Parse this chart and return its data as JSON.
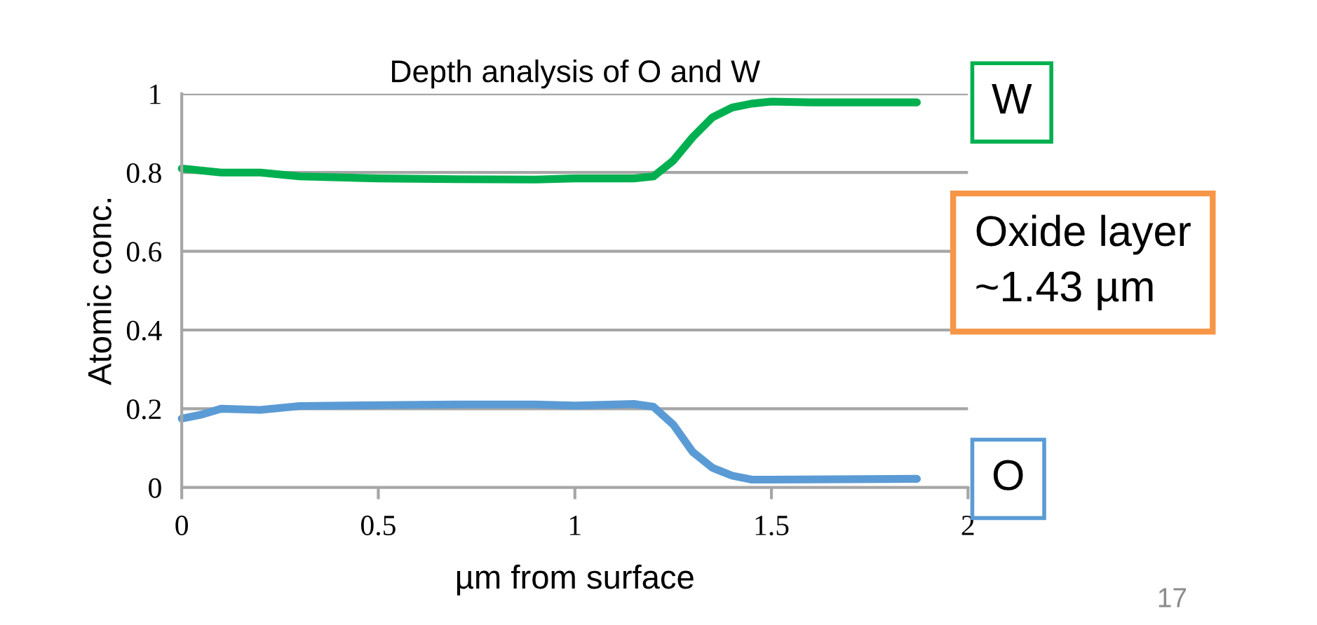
{
  "chart_data": {
    "type": "line",
    "title": "Depth analysis of O and W",
    "xlabel": "µm from surface",
    "ylabel": "Atomic conc.",
    "xlim": [
      0,
      2
    ],
    "xticks": [
      0,
      0.5,
      1,
      1.5,
      2
    ],
    "ylim": [
      0,
      1
    ],
    "yticks": [
      0,
      0.2,
      0.4,
      0.6,
      0.8,
      1
    ],
    "grid": "y",
    "line_style": "solid",
    "marker": "none",
    "series": [
      {
        "name": "W",
        "color": "#00b050",
        "x": [
          0,
          0.1,
          0.2,
          0.3,
          0.5,
          0.7,
          0.9,
          1.0,
          1.15,
          1.2,
          1.25,
          1.3,
          1.35,
          1.4,
          1.45,
          1.5,
          1.6,
          1.87
        ],
        "values": [
          0.81,
          0.8,
          0.8,
          0.79,
          0.785,
          0.783,
          0.782,
          0.785,
          0.785,
          0.79,
          0.83,
          0.89,
          0.94,
          0.965,
          0.975,
          0.98,
          0.978,
          0.978
        ]
      },
      {
        "name": "O",
        "color": "#5b9bd5",
        "x": [
          0,
          0.05,
          0.1,
          0.2,
          0.3,
          0.5,
          0.7,
          0.9,
          1.0,
          1.15,
          1.2,
          1.25,
          1.3,
          1.35,
          1.4,
          1.45,
          1.5,
          1.87
        ],
        "values": [
          0.175,
          0.185,
          0.2,
          0.197,
          0.207,
          0.209,
          0.211,
          0.211,
          0.208,
          0.212,
          0.205,
          0.16,
          0.09,
          0.05,
          0.03,
          0.02,
          0.02,
          0.022
        ]
      }
    ],
    "annotations": [
      "Oxide layer\n~1.43 µm",
      "17"
    ]
  }
}
